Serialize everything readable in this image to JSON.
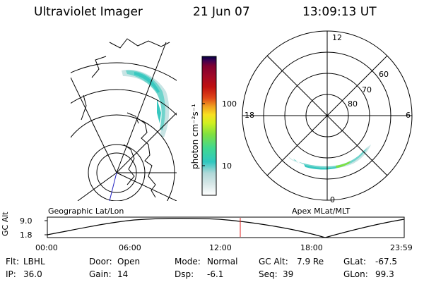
{
  "header": {
    "instrument": "Ultraviolet Imager",
    "date": "21 Jun 07",
    "time": "13:09:13 UT"
  },
  "geo_panel": {
    "label": "Geographic Lat/Lon"
  },
  "apex_panel": {
    "label": "Apex MLat/MLT",
    "mlt_labels": {
      "top": "12",
      "left": "18",
      "right": "6",
      "bottom": "0"
    },
    "mlat_labels": [
      "60",
      "70",
      "80"
    ]
  },
  "colorbar": {
    "unit_label": "photon cm⁻²s⁻¹",
    "ticks": [
      "100",
      "10"
    ],
    "colors": [
      "#ffffff",
      "#d8e8e8",
      "#b0d8d8",
      "#30c8c0",
      "#40d890",
      "#80e040",
      "#d0f020",
      "#f8e020",
      "#f0a020",
      "#e04818",
      "#c01010",
      "#a00828",
      "#800030",
      "#400050",
      "#000040"
    ]
  },
  "timeline": {
    "ylabel": "GC Alt",
    "y_ticks": [
      "9.0",
      "1.8"
    ],
    "x_ticks": [
      "00:00",
      "06:00",
      "12:00",
      "18:00",
      "23:59"
    ],
    "current_time_marker": "13:09:13"
  },
  "info": {
    "filter_label": "Flt:",
    "filter_value": "LBHL",
    "ip_label": "IP:",
    "ip_value": "36.0",
    "door_label": "Door:",
    "door_value": "Open",
    "gain_label": "Gain:",
    "gain_value": "14",
    "mode_label": "Mode:",
    "mode_value": "Normal",
    "dsp_label": "Dsp:",
    "dsp_value": "-6.1",
    "gcalt_label": "GC Alt:",
    "gcalt_value": "7.9 Re",
    "seq_label": "Seq:",
    "seq_value": "39",
    "glat_label": "GLat:",
    "glat_value": "-67.5",
    "glon_label": "GLon:",
    "glon_value": "99.3"
  }
}
